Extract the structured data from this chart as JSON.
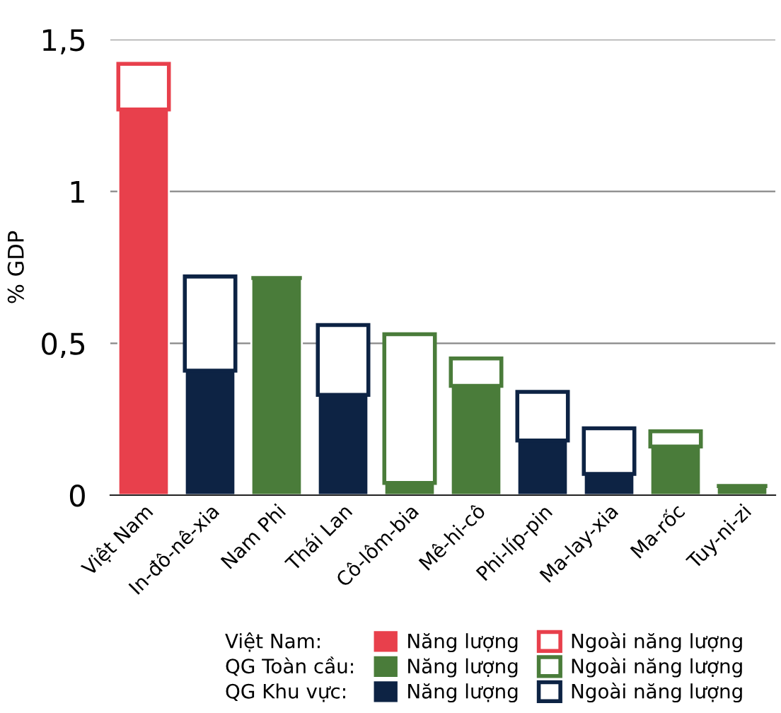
{
  "chart_data": {
    "type": "bar",
    "stacked": true,
    "ylabel": "% GDP",
    "categories": [
      "Việt Nam",
      "In-đô-nê-xia",
      "Nam Phi",
      "Thái Lan",
      "Cô-lôm-bia",
      "Mê-hi-cô",
      "Phi-líp-pin",
      "Ma-lay-xia",
      "Ma-rốc",
      "Tuy-ni-zi"
    ],
    "series": [
      {
        "name": "Năng lượng",
        "color": "#e8404c",
        "values": [
          1.27,
          null,
          null,
          null,
          null,
          null,
          null,
          null,
          null,
          null
        ]
      },
      {
        "name": "Ngoài năng lượng",
        "color": "#e8404c",
        "values": [
          0.15,
          null,
          null,
          null,
          null,
          null,
          null,
          null,
          null,
          null
        ]
      },
      {
        "name": "Năng lượng",
        "color": "#4a7c3a",
        "values": [
          null,
          null,
          0.715,
          null,
          0.04,
          0.36,
          null,
          null,
          0.16,
          0.03
        ]
      },
      {
        "name": "Ngoài năng lượng",
        "color": "#4a7c3a",
        "values": [
          null,
          null,
          0,
          null,
          0.49,
          0.09,
          null,
          null,
          0.05,
          0
        ]
      },
      {
        "name": "Năng lượng",
        "color": "#0d2344",
        "values": [
          null,
          0.41,
          null,
          0.33,
          null,
          null,
          0.18,
          0.07,
          null,
          null
        ]
      },
      {
        "name": "Ngoài năng lượng",
        "color": "#0d2344",
        "values": [
          null,
          0.31,
          null,
          0.23,
          null,
          null,
          0.16,
          0.15,
          null,
          null
        ]
      }
    ],
    "annotations": [
      "Việt Nam:",
      "QG Toàn cầu:",
      "QG Khu vực:"
    ],
    "ylim": [
      0,
      1.5
    ],
    "yticks": [
      0,
      {
        "value": 0.5,
        "label": "0,5"
      },
      1,
      {
        "value": 1.5,
        "label": "1,5"
      }
    ],
    "grid": "y",
    "legend": "bottom"
  }
}
